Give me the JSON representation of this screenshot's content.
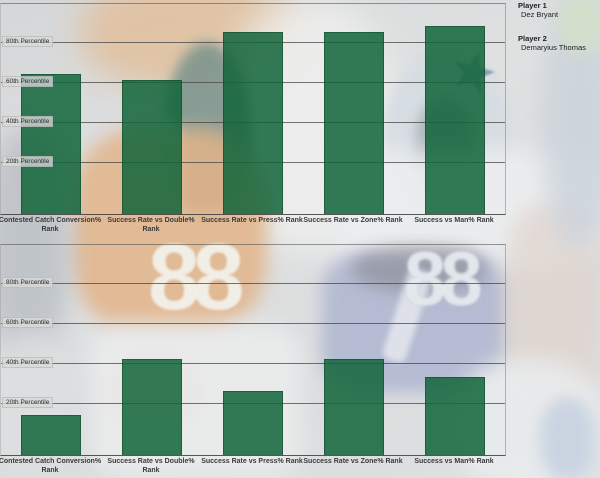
{
  "legend": {
    "player1_label": "Player 1",
    "player1_name": "Dez Bryant",
    "player2_label": "Player 2",
    "player2_name": "Demaryius Thomas"
  },
  "background": {
    "left_jersey_number": "88",
    "right_jersey_number": "88",
    "star_icon": "★"
  },
  "colors": {
    "bar_green": "rgba(17,100,58,0.85)",
    "gridline": "rgba(70,70,70,0.75)",
    "tick_label_bg": "rgba(216,216,216,0.78)",
    "cowboys_star_navy": "#2e4d7b",
    "broncos_orange": "#dd8c42"
  },
  "chart_data": [
    {
      "type": "bar",
      "player": "Dez Bryant",
      "categories": [
        "Contested Catch Conversion%\nRank",
        "Success Rate vs Double%\nRank",
        "Success Rate vs Press% Rank",
        "Success Rate vs Zone% Rank",
        "Success vs Man% Rank"
      ],
      "values": [
        64,
        61,
        85,
        85,
        88
      ],
      "yticks": [
        20,
        40,
        60,
        80
      ],
      "ytick_labels": [
        "20th Percentile",
        "40th Percentile",
        "60th Percentile",
        "80th Percentile"
      ],
      "ylim": [
        -6,
        99
      ],
      "grid": true,
      "legend_position": "top-right"
    },
    {
      "type": "bar",
      "player": "Demaryius Thomas",
      "categories": [
        "Contested Catch Conversion%\nRank",
        "Success Rate vs Double%\nRank",
        "Success Rate vs Press% Rank",
        "Success Rate vs Zone% Rank",
        "Success vs Man% Rank"
      ],
      "values": [
        14,
        42,
        26,
        42,
        33
      ],
      "yticks": [
        20,
        40,
        60,
        80
      ],
      "ytick_labels": [
        "20th Percentile",
        "40th Percentile",
        "60th Percentile",
        "80th Percentile"
      ],
      "ylim": [
        -6,
        99
      ],
      "grid": true,
      "legend_position": "top-right"
    }
  ]
}
